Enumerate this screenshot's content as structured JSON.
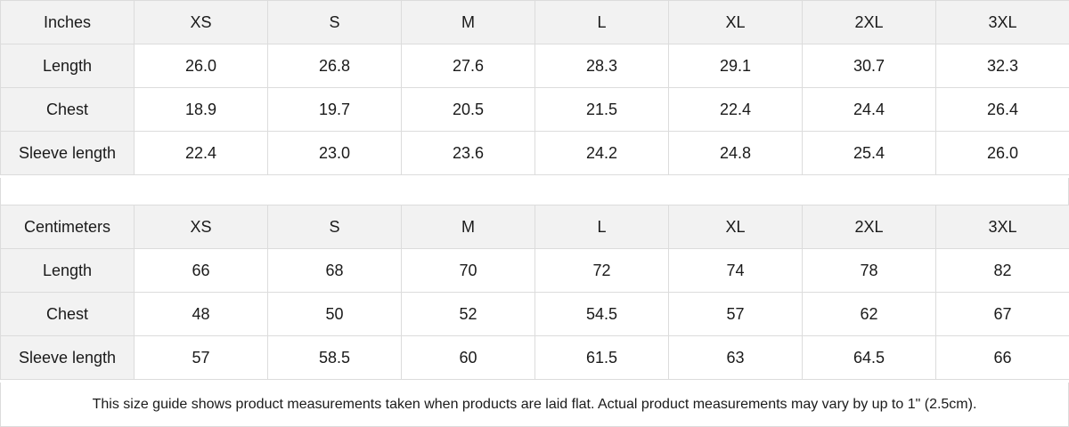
{
  "tables": [
    {
      "unit": "Inches",
      "sizes": [
        "XS",
        "S",
        "M",
        "L",
        "XL",
        "2XL",
        "3XL"
      ],
      "rows": [
        {
          "label": "Length",
          "values": [
            "26.0",
            "26.8",
            "27.6",
            "28.3",
            "29.1",
            "30.7",
            "32.3"
          ]
        },
        {
          "label": "Chest",
          "values": [
            "18.9",
            "19.7",
            "20.5",
            "21.5",
            "22.4",
            "24.4",
            "26.4"
          ]
        },
        {
          "label": "Sleeve length",
          "values": [
            "22.4",
            "23.0",
            "23.6",
            "24.2",
            "24.8",
            "25.4",
            "26.0"
          ]
        }
      ]
    },
    {
      "unit": "Centimeters",
      "sizes": [
        "XS",
        "S",
        "M",
        "L",
        "XL",
        "2XL",
        "3XL"
      ],
      "rows": [
        {
          "label": "Length",
          "values": [
            "66",
            "68",
            "70",
            "72",
            "74",
            "78",
            "82"
          ]
        },
        {
          "label": "Chest",
          "values": [
            "48",
            "50",
            "52",
            "54.5",
            "57",
            "62",
            "67"
          ]
        },
        {
          "label": "Sleeve length",
          "values": [
            "57",
            "58.5",
            "60",
            "61.5",
            "63",
            "64.5",
            "66"
          ]
        }
      ]
    }
  ],
  "note": "This size guide shows product measurements taken when products are laid flat.  Actual product measurements may vary by up to 1\" (2.5cm).",
  "colors": {
    "header_bg": "#f2f2f2",
    "border": "#dcdcdc",
    "text": "#1a1a1a"
  }
}
